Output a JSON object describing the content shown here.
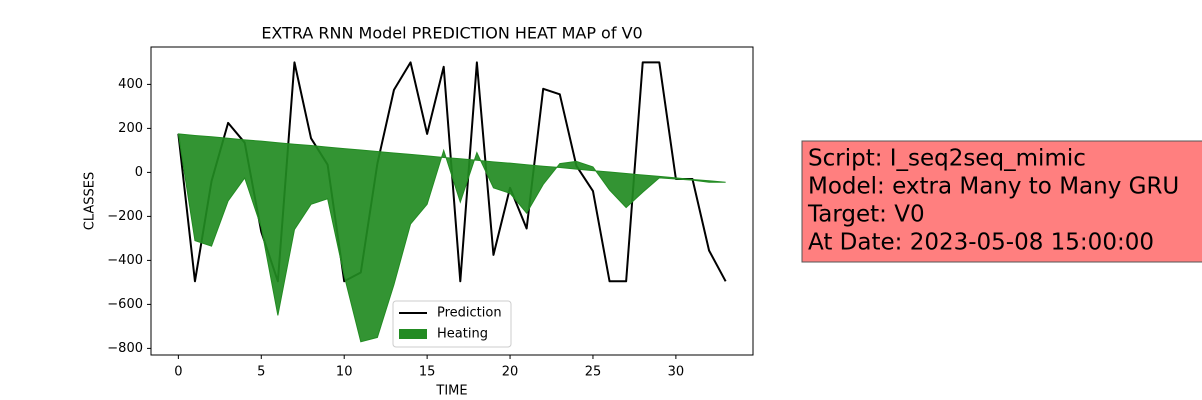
{
  "chart_data": {
    "type": "line",
    "title": "EXTRA RNN Model PREDICTION HEAT MAP of V0",
    "x_label": "TIME",
    "y_label": "CLASSES",
    "x": [
      0,
      1,
      2,
      3,
      4,
      5,
      6,
      7,
      8,
      9,
      10,
      11,
      12,
      13,
      14,
      15,
      16,
      17,
      18,
      19,
      20,
      21,
      22,
      23,
      24,
      25,
      26,
      27,
      28,
      29,
      30,
      31,
      32,
      33
    ],
    "series": [
      {
        "name": "Prediction",
        "color": "#000000",
        "values": [
          175,
          -495,
          -40,
          225,
          135,
          -270,
          -495,
          500,
          155,
          35,
          -495,
          -455,
          40,
          375,
          500,
          175,
          480,
          -495,
          500,
          -375,
          -70,
          -255,
          380,
          355,
          30,
          -85,
          -495,
          -495,
          500,
          500,
          -30,
          -30,
          -355,
          -495
        ]
      },
      {
        "name": "Heating",
        "color": "#228b22",
        "fill": "between",
        "values": [
          175,
          -310,
          -335,
          -130,
          -25,
          -250,
          -650,
          -260,
          -145,
          -120,
          -470,
          -770,
          -750,
          -510,
          -235,
          -145,
          100,
          -135,
          90,
          -70,
          -95,
          -185,
          -55,
          40,
          50,
          25,
          -80,
          -160,
          -90,
          -25,
          -30,
          -35,
          -45,
          -45
        ],
        "base": [
          175,
          168,
          162,
          155,
          148,
          142,
          135,
          128,
          122,
          115,
          108,
          102,
          95,
          88,
          82,
          75,
          68,
          62,
          55,
          48,
          42,
          35,
          28,
          22,
          15,
          8,
          2,
          -5,
          -12,
          -18,
          -25,
          -32,
          -38,
          -45
        ]
      }
    ],
    "xlim": [
      -1.65,
      34.65
    ],
    "ylim": [
      -830,
      570
    ],
    "xticks": [
      0,
      5,
      10,
      15,
      20,
      25,
      30
    ],
    "yticks": [
      {
        "value": -800,
        "label": "−800"
      },
      {
        "value": -600,
        "label": "−600"
      },
      {
        "value": -400,
        "label": "−400"
      },
      {
        "value": -200,
        "label": "−200"
      },
      0,
      200,
      400
    ],
    "legend": "lower center",
    "annotation": [
      "Script: I_seq2seq_mimic",
      "Model: extra Many to Many GRU",
      "Target: V0",
      "At Date: 2023-05-08 15:00:00"
    ]
  }
}
